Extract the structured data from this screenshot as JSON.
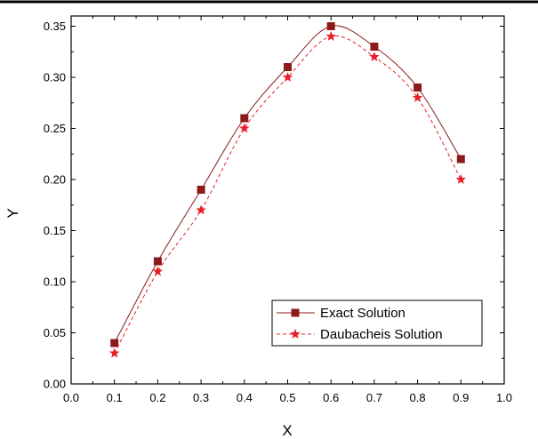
{
  "chart_data": {
    "type": "line",
    "title": "",
    "xlabel": "X",
    "ylabel": "Y",
    "xlim": [
      0.0,
      1.0
    ],
    "ylim": [
      0.0,
      0.36
    ],
    "xticks": [
      "0.0",
      "0.1",
      "0.2",
      "0.3",
      "0.4",
      "0.5",
      "0.6",
      "0.7",
      "0.8",
      "0.9",
      "1.0"
    ],
    "yticks": [
      "0.00",
      "0.05",
      "0.10",
      "0.15",
      "0.20",
      "0.25",
      "0.30",
      "0.35"
    ],
    "grid": false,
    "legend_position": "bottom-right",
    "series": [
      {
        "name": "Exact Solution",
        "marker": "square",
        "line_style": "solid",
        "color": "#8b1a1a",
        "x": [
          0.1,
          0.2,
          0.3,
          0.4,
          0.5,
          0.6,
          0.7,
          0.8,
          0.9
        ],
        "y": [
          0.04,
          0.12,
          0.19,
          0.26,
          0.31,
          0.35,
          0.33,
          0.29,
          0.22
        ]
      },
      {
        "name": "Daubacheis Solution",
        "marker": "star",
        "line_style": "dashed",
        "color": "#e8202a",
        "x": [
          0.1,
          0.2,
          0.3,
          0.4,
          0.5,
          0.6,
          0.7,
          0.8,
          0.9
        ],
        "y": [
          0.03,
          0.11,
          0.17,
          0.25,
          0.3,
          0.34,
          0.32,
          0.28,
          0.2
        ]
      }
    ]
  }
}
